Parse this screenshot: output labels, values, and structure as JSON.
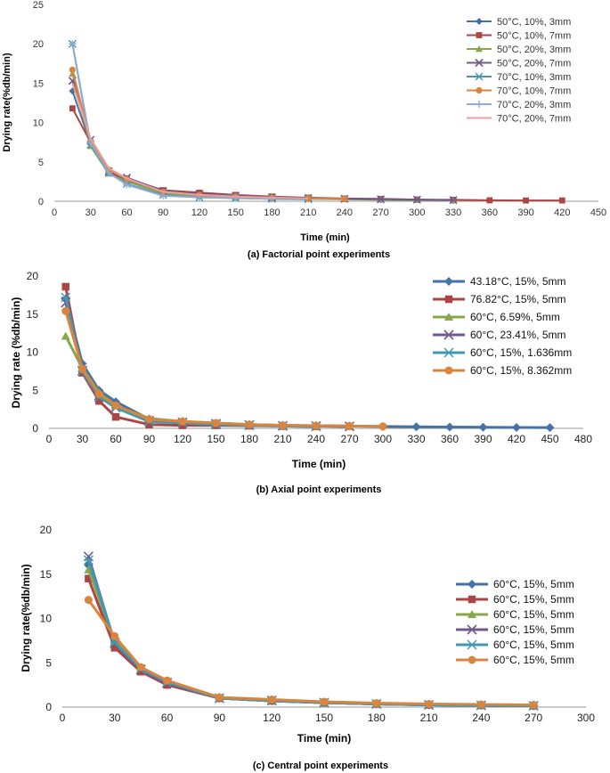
{
  "chart_data": [
    {
      "type": "line",
      "caption": "(a) Factorial point experiments",
      "xlabel": "Time (min)",
      "ylabel": "Drying rate(%db/min)",
      "xlim": [
        0,
        450
      ],
      "ylim": [
        0,
        25
      ],
      "xticks": [
        0,
        30,
        60,
        90,
        120,
        150,
        180,
        210,
        240,
        270,
        300,
        330,
        360,
        390,
        420,
        450
      ],
      "yticks": [
        0,
        5,
        10,
        15,
        20,
        25
      ],
      "legend_position": "top-right",
      "series": [
        {
          "name": "50°C, 10%, 3mm",
          "color": "#4572A7",
          "marker": "diamond",
          "x": [
            15,
            30,
            45,
            60,
            90,
            120,
            150,
            180,
            210,
            240,
            270,
            300,
            330
          ],
          "y": [
            14.0,
            7.3,
            3.7,
            2.7,
            1.1,
            0.7,
            0.5,
            0.4,
            0.3,
            0.3,
            0.2,
            0.2,
            0.1
          ]
        },
        {
          "name": "50°C, 10%, 7mm",
          "color": "#AA4643",
          "marker": "square",
          "x": [
            15,
            30,
            45,
            60,
            90,
            120,
            150,
            180,
            210,
            240,
            270,
            300,
            330,
            360,
            390,
            420
          ],
          "y": [
            11.8,
            7.5,
            3.6,
            2.9,
            1.4,
            1.1,
            0.8,
            0.6,
            0.45,
            0.35,
            0.3,
            0.22,
            0.18,
            0.12,
            0.1,
            0.1
          ]
        },
        {
          "name": "50°C, 20%, 3mm",
          "color": "#89A54E",
          "marker": "triangle",
          "x": [
            15,
            30,
            45,
            60,
            90,
            120,
            150,
            180,
            210,
            240,
            270,
            300,
            330
          ],
          "y": [
            16.2,
            7.0,
            3.5,
            2.5,
            1.0,
            0.7,
            0.5,
            0.4,
            0.3,
            0.25,
            0.2,
            0.15,
            0.1
          ]
        },
        {
          "name": "50°C, 20%, 7mm",
          "color": "#71588F",
          "marker": "x",
          "x": [
            15,
            30,
            45,
            60,
            90,
            120,
            150,
            180,
            210,
            240,
            270,
            300,
            330
          ],
          "y": [
            15.3,
            7.8,
            3.8,
            3.0,
            1.3,
            0.9,
            0.7,
            0.5,
            0.4,
            0.3,
            0.25,
            0.2,
            0.15
          ]
        },
        {
          "name": "70°C, 10%, 3mm",
          "color": "#4198AF",
          "marker": "star",
          "x": [
            15,
            30,
            45,
            60,
            90,
            120,
            150,
            180,
            210
          ],
          "y": [
            20.0,
            7.2,
            3.6,
            2.2,
            0.8,
            0.5,
            0.4,
            0.3,
            0.25
          ]
        },
        {
          "name": "70°C, 10%, 7mm",
          "color": "#DB843D",
          "marker": "circle",
          "x": [
            15,
            30,
            45,
            60,
            90,
            120,
            150,
            180,
            210,
            240
          ],
          "y": [
            16.7,
            7.6,
            4.0,
            2.8,
            1.2,
            0.8,
            0.6,
            0.45,
            0.35,
            0.3
          ]
        },
        {
          "name": "70°C, 20%, 3mm",
          "color": "#93A9CF",
          "marker": "plus",
          "x": [
            15,
            30,
            45,
            60,
            90,
            120,
            150,
            180
          ],
          "y": [
            20.0,
            7.4,
            3.6,
            2.1,
            0.7,
            0.5,
            0.4,
            0.3
          ]
        },
        {
          "name": "70°C, 20%, 7mm",
          "color": "#E8A09E",
          "marker": "none",
          "x": [
            15,
            30,
            45,
            60,
            90,
            120,
            150,
            180,
            210
          ],
          "y": [
            15.0,
            8.0,
            4.2,
            2.9,
            1.2,
            0.8,
            0.6,
            0.45,
            0.35
          ]
        }
      ]
    },
    {
      "type": "line",
      "caption": "(b) Axial point experiments",
      "xlabel": "Time (min)",
      "ylabel": "Drying rate (%db/min)",
      "xlim": [
        0,
        480
      ],
      "ylim": [
        0,
        20
      ],
      "xticks": [
        0,
        30,
        60,
        90,
        120,
        150,
        180,
        210,
        240,
        270,
        300,
        330,
        360,
        390,
        420,
        450,
        480
      ],
      "yticks": [
        0,
        5,
        10,
        15,
        20
      ],
      "legend_position": "top-right",
      "series": [
        {
          "name": "43.18°C, 15%, 5mm",
          "color": "#4572A7",
          "marker": "diamond",
          "x": [
            15,
            30,
            45,
            60,
            90,
            120,
            150,
            180,
            210,
            240,
            270,
            300,
            330,
            360,
            390,
            420,
            450
          ],
          "y": [
            17.0,
            8.5,
            5.0,
            3.5,
            1.2,
            0.9,
            0.6,
            0.5,
            0.4,
            0.35,
            0.3,
            0.25,
            0.2,
            0.18,
            0.15,
            0.12,
            0.1
          ]
        },
        {
          "name": "76.82°C, 15%, 5mm",
          "color": "#AA4643",
          "marker": "square",
          "x": [
            15,
            30,
            45,
            60,
            90,
            120,
            150,
            180,
            210,
            240
          ],
          "y": [
            18.6,
            7.3,
            3.6,
            1.5,
            0.5,
            0.4,
            0.4,
            0.35,
            0.3,
            0.25
          ]
        },
        {
          "name": "60°C, 6.59%, 5mm",
          "color": "#89A54E",
          "marker": "triangle",
          "x": [
            15,
            30,
            45,
            60,
            90,
            120,
            150,
            180,
            210,
            240,
            270
          ],
          "y": [
            12.1,
            7.9,
            4.7,
            3.0,
            1.3,
            0.9,
            0.7,
            0.5,
            0.4,
            0.3,
            0.25
          ]
        },
        {
          "name": "60°C, 23.41%, 5mm",
          "color": "#71588F",
          "marker": "x",
          "x": [
            15,
            30,
            45,
            60,
            90,
            120,
            150,
            180,
            210,
            240,
            270
          ],
          "y": [
            16.5,
            7.6,
            4.3,
            2.8,
            1.0,
            0.8,
            0.6,
            0.45,
            0.35,
            0.3,
            0.25
          ]
        },
        {
          "name": "60°C, 15%, 1.636mm",
          "color": "#4198AF",
          "marker": "star",
          "x": [
            15,
            30,
            45,
            60,
            90,
            120,
            150,
            180,
            210,
            240
          ],
          "y": [
            17.2,
            7.5,
            4.1,
            2.7,
            0.9,
            0.7,
            0.5,
            0.4,
            0.3,
            0.25
          ]
        },
        {
          "name": "60°C, 15%, 8.362mm",
          "color": "#DB843D",
          "marker": "circle",
          "x": [
            15,
            30,
            45,
            60,
            90,
            120,
            150,
            180,
            210,
            240,
            270,
            300
          ],
          "y": [
            15.4,
            7.8,
            4.5,
            3.0,
            1.2,
            0.9,
            0.7,
            0.5,
            0.4,
            0.35,
            0.3,
            0.25
          ]
        }
      ]
    },
    {
      "type": "line",
      "caption": "(c) Central point experiments",
      "xlabel": "Time (min)",
      "ylabel": "Drying rate(%db/min)",
      "xlim": [
        0,
        300
      ],
      "ylim": [
        0,
        20
      ],
      "xticks": [
        0,
        30,
        60,
        90,
        120,
        150,
        180,
        210,
        240,
        270,
        300
      ],
      "yticks": [
        0,
        5,
        10,
        15,
        20
      ],
      "legend_position": "right",
      "series": [
        {
          "name": "60°C, 15%, 5mm",
          "color": "#4572A7",
          "marker": "diamond",
          "x": [
            15,
            30,
            45,
            60,
            90,
            120,
            150,
            180,
            210,
            240,
            270
          ],
          "y": [
            16.0,
            7.0,
            4.3,
            2.6,
            1.0,
            0.7,
            0.5,
            0.35,
            0.25,
            0.2,
            0.15
          ]
        },
        {
          "name": "60°C, 15%, 5mm",
          "color": "#AA4643",
          "marker": "square",
          "x": [
            15,
            30,
            45,
            60,
            90,
            120,
            150,
            180,
            210,
            240,
            270
          ],
          "y": [
            14.5,
            6.7,
            4.0,
            2.5,
            1.0,
            0.7,
            0.5,
            0.35,
            0.25,
            0.2,
            0.15
          ]
        },
        {
          "name": "60°C, 15%, 5mm",
          "color": "#89A54E",
          "marker": "triangle",
          "x": [
            15,
            30,
            45,
            60,
            90,
            120,
            150,
            180,
            210,
            240,
            270
          ],
          "y": [
            15.5,
            7.5,
            4.5,
            2.9,
            1.1,
            0.8,
            0.55,
            0.4,
            0.3,
            0.25,
            0.2
          ]
        },
        {
          "name": "60°C, 15%, 5mm",
          "color": "#71588F",
          "marker": "x",
          "x": [
            15,
            30,
            45,
            60,
            90,
            120,
            150,
            180,
            210,
            240,
            270
          ],
          "y": [
            17.0,
            7.2,
            4.2,
            2.7,
            1.0,
            0.75,
            0.5,
            0.35,
            0.25,
            0.2,
            0.15
          ]
        },
        {
          "name": "60°C, 15%, 5mm",
          "color": "#4198AF",
          "marker": "star",
          "x": [
            15,
            30,
            45,
            60,
            90,
            120,
            150,
            180,
            210,
            240,
            270
          ],
          "y": [
            16.6,
            7.3,
            4.3,
            2.8,
            1.0,
            0.7,
            0.5,
            0.35,
            0.25,
            0.2,
            0.15
          ]
        },
        {
          "name": "60°C, 15%, 5mm",
          "color": "#DB843D",
          "marker": "circle",
          "x": [
            15,
            30,
            45,
            60,
            90,
            120,
            150,
            180,
            210,
            240,
            270
          ],
          "y": [
            12.1,
            8.0,
            4.5,
            3.0,
            1.1,
            0.85,
            0.6,
            0.45,
            0.35,
            0.3,
            0.25
          ]
        }
      ]
    }
  ]
}
